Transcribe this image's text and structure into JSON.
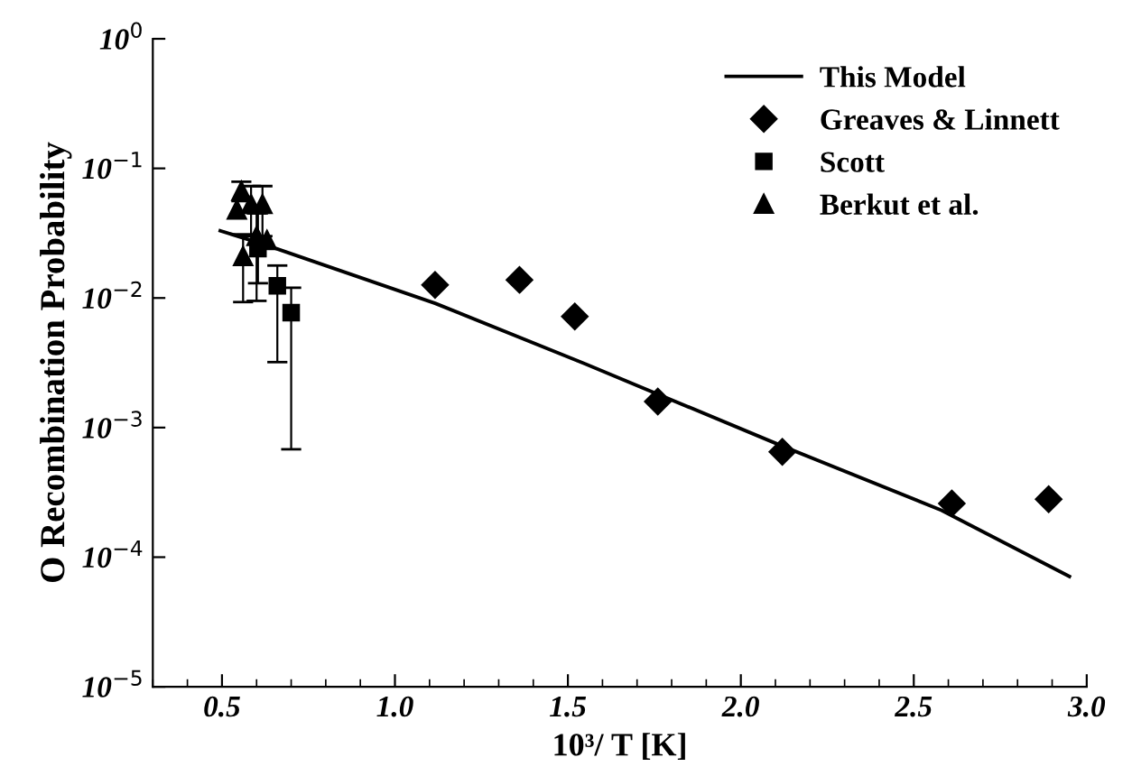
{
  "chart_data": {
    "type": "scatter",
    "xlabel": "10³/ T [K]",
    "ylabel": "O Recombination Probability",
    "log": "y",
    "grid": false,
    "legend": "top right",
    "xlim": [
      0.3,
      3.0
    ],
    "ylim": [
      1e-05,
      1
    ],
    "xticks": [
      {
        "value": 0.5,
        "label": "0.5"
      },
      {
        "value": 1.0,
        "label": "1.0"
      },
      {
        "value": 1.5,
        "label": "1.5"
      },
      {
        "value": 2.0,
        "label": "2.0"
      },
      {
        "value": 2.5,
        "label": "2.5"
      },
      {
        "value": 3.0,
        "label": "3.0"
      }
    ],
    "yticks": [
      {
        "value": 1e-05,
        "label": "10$^{−5}$"
      },
      {
        "value": 0.0001,
        "label": "10$^{−4}$"
      },
      {
        "value": 0.001,
        "label": "10$^{−3}$"
      },
      {
        "value": 0.01,
        "label": "10$^{−2}$"
      },
      {
        "value": 0.1,
        "label": "10$^{−1}$"
      },
      {
        "value": 1,
        "label": "10$^{0}$"
      }
    ],
    "series": [
      {
        "name": "This Model",
        "type": "line",
        "color": "#000000",
        "marker": "none",
        "line_style": "solid",
        "x": [
          0.495,
          0.62,
          1.116,
          1.55,
          2.12,
          2.58,
          2.95
        ],
        "values": [
          0.033,
          0.026,
          0.0091,
          0.0031,
          0.00072,
          0.00023,
          7.1e-05
        ]
      },
      {
        "name": "Greaves & Linnett",
        "color": "#000000",
        "marker": "diamond",
        "x": [
          1.116,
          1.36,
          1.52,
          1.76,
          2.12,
          2.61,
          2.89
        ],
        "values": [
          0.0126,
          0.0138,
          0.0072,
          0.00159,
          0.00065,
          0.00026,
          0.00028
        ]
      },
      {
        "name": "Scott",
        "color": "#000000",
        "marker": "square",
        "x": [
          0.604,
          0.66,
          0.7
        ],
        "values": [
          0.024,
          0.0124,
          0.0077
        ],
        "errors": [
          [
            0.013,
            0.045
          ],
          [
            0.0032,
            0.0178
          ],
          [
            0.00068,
            0.012
          ]
        ]
      },
      {
        "name": "Berkut et al.",
        "color": "#000000",
        "marker": "triangle",
        "x": [
          0.543,
          0.556,
          0.584,
          0.617,
          0.561,
          0.6,
          0.63
        ],
        "values": [
          0.048,
          0.067,
          0.053,
          0.053,
          0.021,
          0.03,
          0.028
        ],
        "errors": [
          null,
          [
            0.056,
            0.079
          ],
          [
            0.03,
            0.073
          ],
          [
            0.03,
            0.073
          ],
          [
            0.0093,
            0.031
          ],
          [
            0.0095,
            0.045
          ],
          null
        ]
      }
    ]
  }
}
